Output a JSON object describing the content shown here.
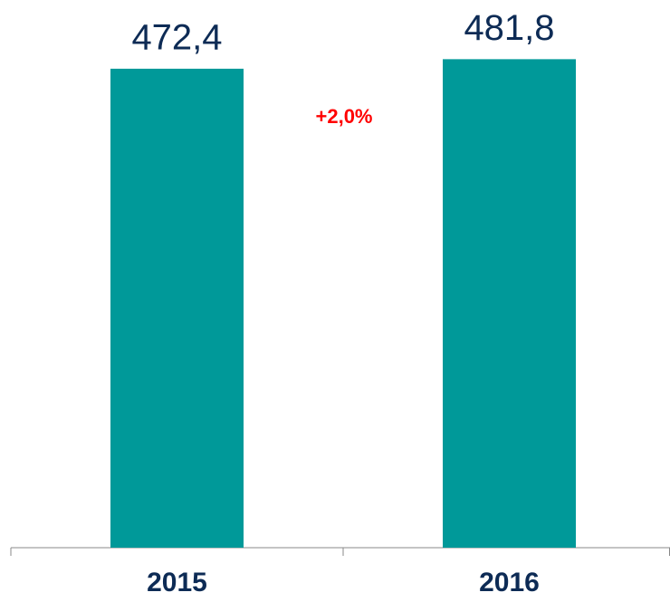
{
  "chart_data": {
    "type": "bar",
    "categories": [
      "2015",
      "2016"
    ],
    "values": [
      472.4,
      481.8
    ],
    "value_labels": [
      "472,4",
      "481,8"
    ],
    "color": "#009999",
    "ylim": [
      0,
      500
    ],
    "annotations": [
      "+2,0%"
    ]
  }
}
